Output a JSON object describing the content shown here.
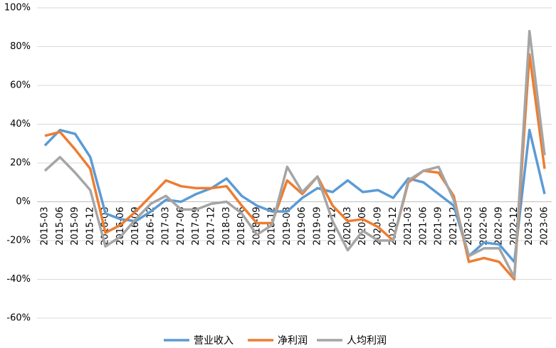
{
  "chart_data": {
    "type": "line",
    "categories": [
      "2015-03",
      "2015-06",
      "2015-09",
      "2015-12",
      "2016-03",
      "2016-06",
      "2016-09",
      "2016-12",
      "2017-03",
      "2017-06",
      "2017-09",
      "2017-12",
      "2018-03",
      "2018-06",
      "2018-09",
      "2018-12",
      "2019-03",
      "2019-06",
      "2019-09",
      "2019-12",
      "2020-03",
      "2020-06",
      "2020-09",
      "2020-12",
      "2021-03",
      "2021-06",
      "2021-09",
      "2021-12",
      "2022-03",
      "2022-06",
      "2022-09",
      "2022-12",
      "2023-03",
      "2023-06"
    ],
    "series": [
      {
        "name": "营业收入",
        "color": "#5b9bd5",
        "values": [
          29,
          37,
          35,
          23,
          -6,
          -9,
          -10,
          -5,
          1,
          0,
          4,
          7,
          12,
          3,
          -2,
          -5,
          -5,
          2,
          7,
          5,
          11,
          5,
          6,
          2,
          12,
          10,
          4,
          -2,
          -28,
          -21,
          -22,
          -31,
          37,
          4
        ]
      },
      {
        "name": "净利润",
        "color": "#ed7d31",
        "values": [
          34,
          36,
          27,
          17,
          -16,
          -12,
          -5,
          3,
          11,
          8,
          7,
          7,
          8,
          -2,
          -11,
          -11,
          11,
          4,
          13,
          -2,
          -10,
          -9,
          -13,
          -20,
          10,
          16,
          15,
          3,
          -31,
          -29,
          -31,
          -40,
          76,
          17
        ]
      },
      {
        "name": "人均利润",
        "color": "#a5a5a5",
        "values": [
          16,
          23,
          15,
          6,
          -23,
          -18,
          -9,
          -1,
          3,
          -4,
          -4,
          -1,
          0,
          -6,
          -17,
          -12,
          18,
          5,
          13,
          -10,
          -25,
          -15,
          -20,
          -20,
          11,
          16,
          18,
          1,
          -28,
          -24,
          -24,
          -39,
          88,
          24
        ]
      }
    ],
    "ylim": [
      -60,
      100
    ],
    "yticks": [
      {
        "value": -60,
        "label": "-60%"
      },
      {
        "value": -40,
        "label": "-40%"
      },
      {
        "value": -20,
        "label": "-20%"
      },
      {
        "value": 0,
        "label": "0%"
      },
      {
        "value": 20,
        "label": "20%"
      },
      {
        "value": 40,
        "label": "40%"
      },
      {
        "value": 60,
        "label": "60%"
      },
      {
        "value": 80,
        "label": "80%"
      },
      {
        "value": 100,
        "label": "100%"
      }
    ],
    "grid": true
  }
}
